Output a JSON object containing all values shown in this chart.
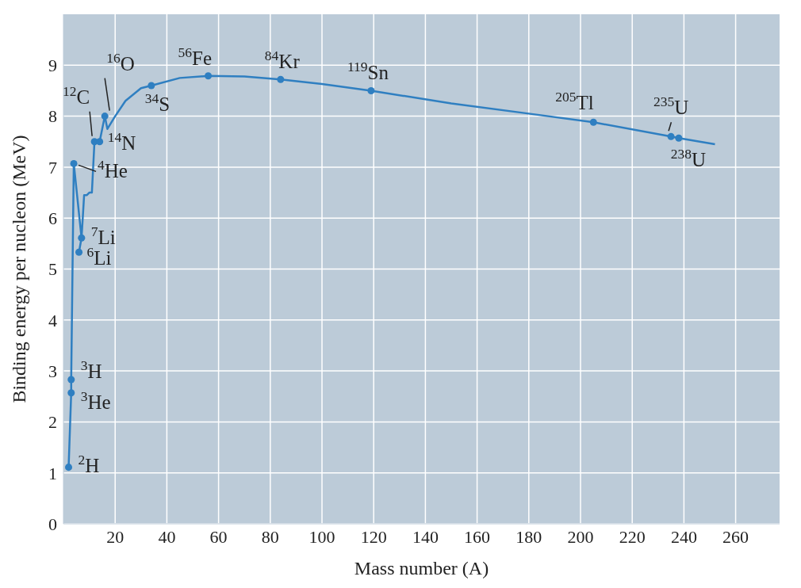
{
  "chart_data": {
    "type": "line",
    "xlabel": "Mass number (A)",
    "ylabel": "Binding energy per nucleon (MeV)",
    "xlim": [
      0,
      277
    ],
    "ylim": [
      0,
      10
    ],
    "xticks": [
      20,
      40,
      60,
      80,
      100,
      120,
      140,
      160,
      180,
      200,
      220,
      240,
      260
    ],
    "yticks": [
      0,
      1,
      2,
      3,
      4,
      5,
      6,
      7,
      8,
      9
    ],
    "grid": true,
    "series": [
      {
        "color": "#2f7fc1",
        "marker": "none",
        "x": [
          2,
          3,
          3,
          4,
          7,
          6,
          7,
          8,
          9,
          10,
          11,
          12,
          14,
          16,
          17,
          20,
          24,
          30,
          34,
          45,
          56,
          70,
          84,
          100,
          119,
          150,
          180,
          205,
          235,
          238,
          252
        ],
        "values": [
          1.11,
          2.57,
          2.83,
          7.07,
          5.61,
          5.33,
          5.61,
          6.45,
          6.45,
          6.5,
          6.5,
          7.5,
          7.5,
          8.0,
          7.75,
          8.0,
          8.3,
          8.55,
          8.6,
          8.75,
          8.79,
          8.78,
          8.72,
          8.63,
          8.5,
          8.25,
          8.05,
          7.88,
          7.6,
          7.57,
          7.45
        ]
      },
      {
        "type": "scatter",
        "color": "#2f7fc1",
        "marker": "circle",
        "x": [
          2,
          3,
          3,
          4,
          6,
          7,
          12,
          14,
          16,
          34,
          56,
          84,
          119,
          205,
          235,
          238
        ],
        "values": [
          1.11,
          2.83,
          2.57,
          7.07,
          5.33,
          5.61,
          7.5,
          7.5,
          8.0,
          8.6,
          8.79,
          8.72,
          8.5,
          7.88,
          7.6,
          7.57
        ]
      }
    ],
    "annotations": [
      {
        "text": "$^{2}$H",
        "x": 2,
        "y": 1.11
      },
      {
        "text": "$^{3}$H",
        "x": 3,
        "y": 2.83
      },
      {
        "text": "$^{3}$He",
        "x": 3,
        "y": 2.57
      },
      {
        "text": "$^{4}$He",
        "x": 4,
        "y": 7.07
      },
      {
        "text": "$^{6}$Li",
        "x": 6,
        "y": 5.33
      },
      {
        "text": "$^{7}$Li",
        "x": 7,
        "y": 5.61
      },
      {
        "text": "$^{12}$C",
        "x": 12,
        "y": 7.5
      },
      {
        "text": "$^{14}$N",
        "x": 14,
        "y": 7.5
      },
      {
        "text": "$^{16}$O",
        "x": 16,
        "y": 8.0
      },
      {
        "text": "$^{34}$S",
        "x": 34,
        "y": 8.6
      },
      {
        "text": "$^{56}$Fe",
        "x": 56,
        "y": 8.79
      },
      {
        "text": "$^{84}$Kr",
        "x": 84,
        "y": 8.72
      },
      {
        "text": "$^{119}$Sn",
        "x": 119,
        "y": 8.5
      },
      {
        "text": "$^{205}$Tl",
        "x": 205,
        "y": 7.88
      },
      {
        "text": "$^{235}$U",
        "x": 235,
        "y": 7.6
      },
      {
        "text": "$^{238}$U",
        "x": 238,
        "y": 7.57
      }
    ]
  }
}
